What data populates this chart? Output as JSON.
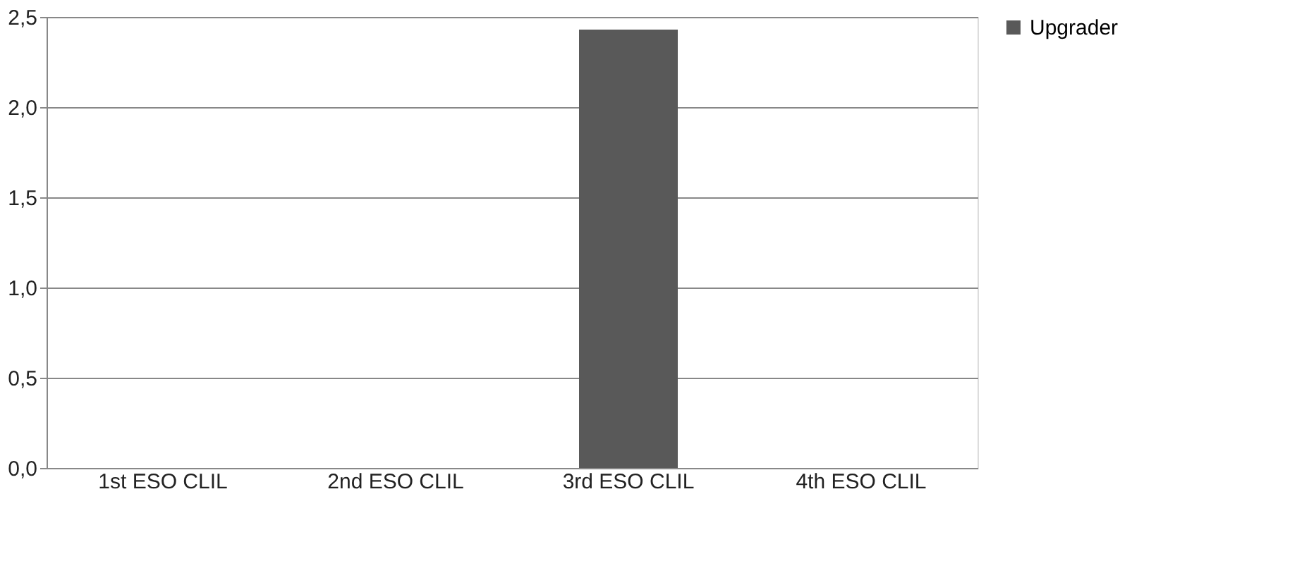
{
  "chart_data": {
    "type": "bar",
    "categories": [
      "1st ESO CLIL",
      "2nd ESO CLIL",
      "3rd ESO CLIL",
      "4th ESO CLIL"
    ],
    "series": [
      {
        "name": "Upgrader",
        "color": "#595959",
        "values": [
          0,
          0,
          2.43,
          0
        ]
      }
    ],
    "ylim": [
      0,
      2.5
    ],
    "yticks": [
      {
        "value": 0,
        "label": "0,0"
      },
      {
        "value": 0.5,
        "label": "0,5"
      },
      {
        "value": 1,
        "label": "1,0"
      },
      {
        "value": 1.5,
        "label": "1,5"
      },
      {
        "value": 2,
        "label": "2,0"
      },
      {
        "value": 2.5,
        "label": "2,5"
      }
    ],
    "grid": "y",
    "legend": "right"
  }
}
